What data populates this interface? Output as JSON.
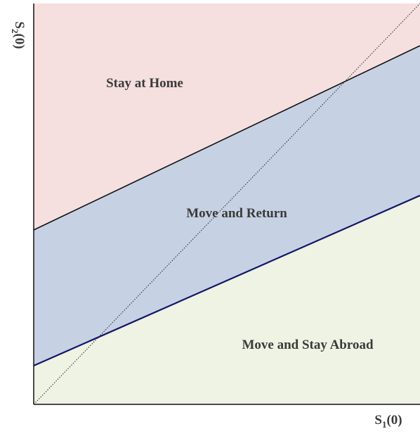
{
  "regions": [
    {
      "label": "Stay at Home"
    },
    {
      "label": "Move and Return"
    },
    {
      "label": "Move and Stay Abroad"
    }
  ],
  "x_axis": {
    "base": "S",
    "sub": "1",
    "rest": "(0)"
  },
  "y_axis": {
    "base": "S",
    "sub": "2",
    "rest": "(0)"
  }
}
